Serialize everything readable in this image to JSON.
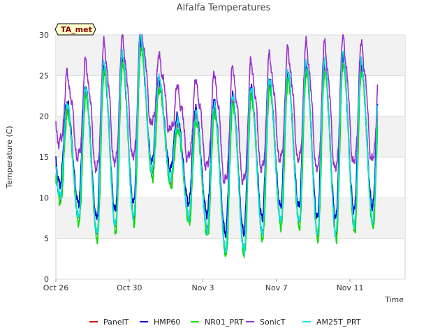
{
  "chart_data": {
    "type": "line",
    "title": "Alfalfa Temperatures",
    "xlabel": "Time",
    "ylabel": "Temperature (C)",
    "badge": "TA_met",
    "x_start": "Oct 26",
    "x_end_day": 17.5,
    "xlim": [
      0,
      19
    ],
    "ylim": [
      0,
      30
    ],
    "yticks": [
      0,
      5,
      10,
      15,
      20,
      25,
      30
    ],
    "xticks": [
      {
        "day": 0,
        "label": "Oct 26"
      },
      {
        "day": 4,
        "label": "Oct 30"
      },
      {
        "day": 8,
        "label": "Nov 3"
      },
      {
        "day": 12,
        "label": "Nov 7"
      },
      {
        "day": 16,
        "label": "Nov 11"
      }
    ],
    "grid": true,
    "legend_position": "bottom",
    "daily_extremes": [
      {
        "min": 10,
        "max": 21
      },
      {
        "min": 7.5,
        "max": 23
      },
      {
        "min": 5.5,
        "max": 26
      },
      {
        "min": 6.5,
        "max": 27
      },
      {
        "min": 7.5,
        "max": 29
      },
      {
        "min": 13,
        "max": 24
      },
      {
        "min": 12,
        "max": 19
      },
      {
        "min": 7.5,
        "max": 20
      },
      {
        "min": 6,
        "max": 21
      },
      {
        "min": 3.5,
        "max": 22
      },
      {
        "min": 3.5,
        "max": 23
      },
      {
        "min": 5.5,
        "max": 24
      },
      {
        "min": 7,
        "max": 25
      },
      {
        "min": 7,
        "max": 26
      },
      {
        "min": 5.5,
        "max": 26
      },
      {
        "min": 5.5,
        "max": 27
      },
      {
        "min": 6.5,
        "max": 26
      },
      {
        "min": 7,
        "max": 24
      },
      {
        "min": 10,
        "max": 19
      }
    ],
    "series": [
      {
        "name": "PanelT",
        "color": "#dd0000",
        "offset": 0,
        "scale": 1.0,
        "phase": 0.0
      },
      {
        "name": "HMP60",
        "color": "#0000cc",
        "offset": 1.3,
        "scale": 0.92,
        "phase": 0.02
      },
      {
        "name": "NR01_PRT",
        "color": "#00dd00",
        "offset": -0.6,
        "scale": 1.0,
        "phase": -0.01
      },
      {
        "name": "SonicT",
        "color": "#9933cc",
        "offset": 5.5,
        "scale": 0.75,
        "phase": 0.0
      },
      {
        "name": "AM25T_PRT",
        "color": "#00e5e5",
        "offset": 0.3,
        "scale": 1.03,
        "phase": 0.01
      }
    ]
  }
}
